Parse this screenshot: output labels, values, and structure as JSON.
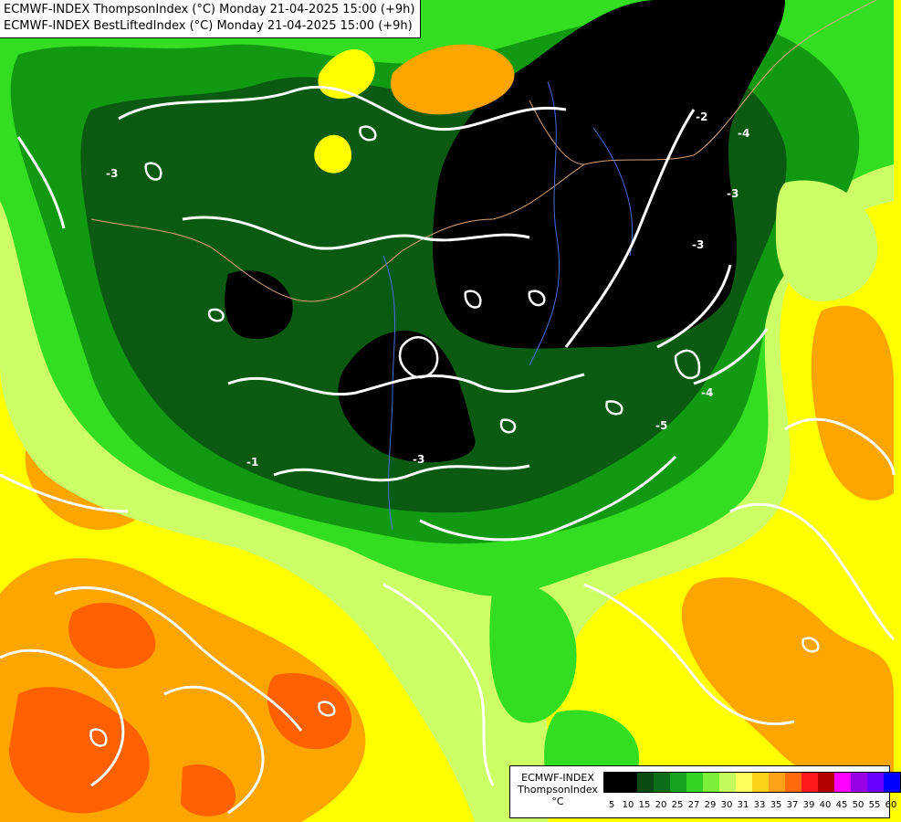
{
  "title": {
    "line1": "ECMWF-INDEX ThompsonIndex (°C) Monday 21-04-2025 15:00 (+9h)",
    "line2": "ECMWF-INDEX BestLiftedIndex (°C) Monday 21-04-2025 15:00 (+9h)"
  },
  "contour_labels": [
    {
      "id": "label-1",
      "text": "-3"
    },
    {
      "id": "label-2",
      "text": "-3"
    },
    {
      "id": "label-3",
      "text": "-3"
    },
    {
      "id": "label-4",
      "text": "-4"
    },
    {
      "id": "label-5",
      "text": "-4"
    },
    {
      "id": "label-6",
      "text": "-5"
    },
    {
      "id": "label-7",
      "text": "-3"
    },
    {
      "id": "label-8",
      "text": "-2"
    },
    {
      "id": "label-9",
      "text": "-1"
    }
  ],
  "legend": {
    "lines": [
      "ECMWF-INDEX",
      "ThompsonIndex",
      "°C"
    ],
    "ticks": [
      "5",
      "10",
      "15",
      "20",
      "25",
      "27",
      "29",
      "30",
      "31",
      "33",
      "35",
      "37",
      "39",
      "40",
      "45",
      "50",
      "55",
      "60"
    ],
    "colors": [
      "#000000",
      "#000000",
      "#000000",
      "#000000",
      "#0a4a14",
      "#0d6e1a",
      "#16a21f",
      "#36d422",
      "#7cf039",
      "#c4fa5a",
      "#ffff5e",
      "#ffd21a",
      "#ffa21a",
      "#ff6a0a",
      "#ff1a1a",
      "#b40000",
      "#ff00ff",
      "#9900e6",
      "#6a00ff",
      "#0000ff"
    ]
  }
}
